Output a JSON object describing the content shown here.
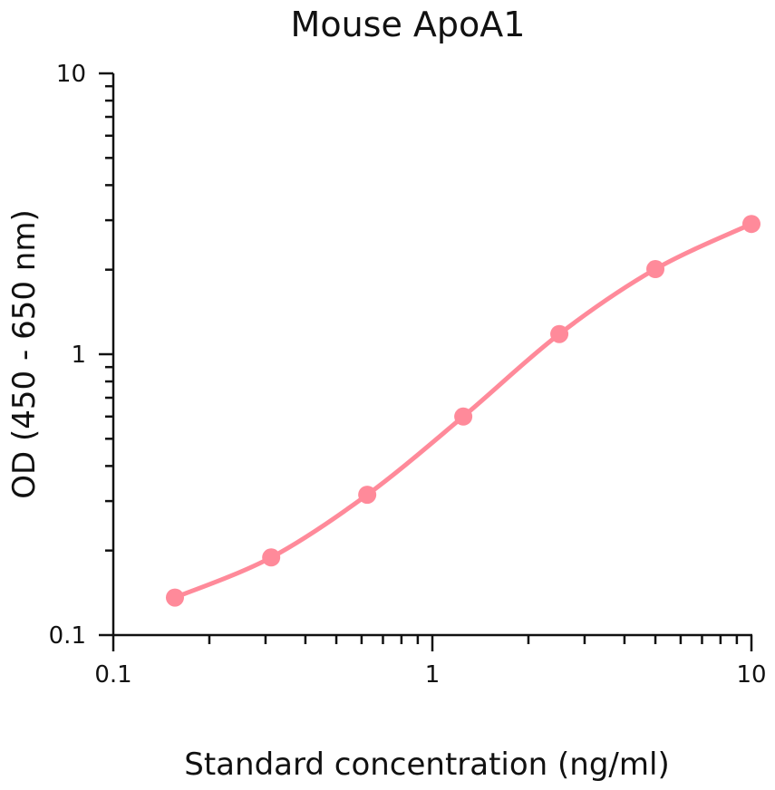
{
  "chart_data": {
    "type": "line",
    "title": "Mouse ApoA1",
    "xlabel": "Standard concentration (ng/ml)",
    "ylabel": "OD (450 - 650 nm)",
    "xscale": "log",
    "yscale": "log",
    "xlim": [
      0.1,
      10
    ],
    "ylim": [
      0.1,
      10
    ],
    "x_ticks": [
      "0.1",
      "1",
      "10"
    ],
    "y_ticks": [
      "0.1",
      "1",
      "10"
    ],
    "grid": false,
    "series": [
      {
        "x": [
          0.156,
          0.3125,
          0.625,
          1.25,
          2.5,
          5,
          10
        ],
        "y": [
          0.136,
          0.189,
          0.316,
          0.6,
          1.18,
          2.01,
          2.91
        ],
        "color": "#ff8a9a"
      }
    ]
  }
}
